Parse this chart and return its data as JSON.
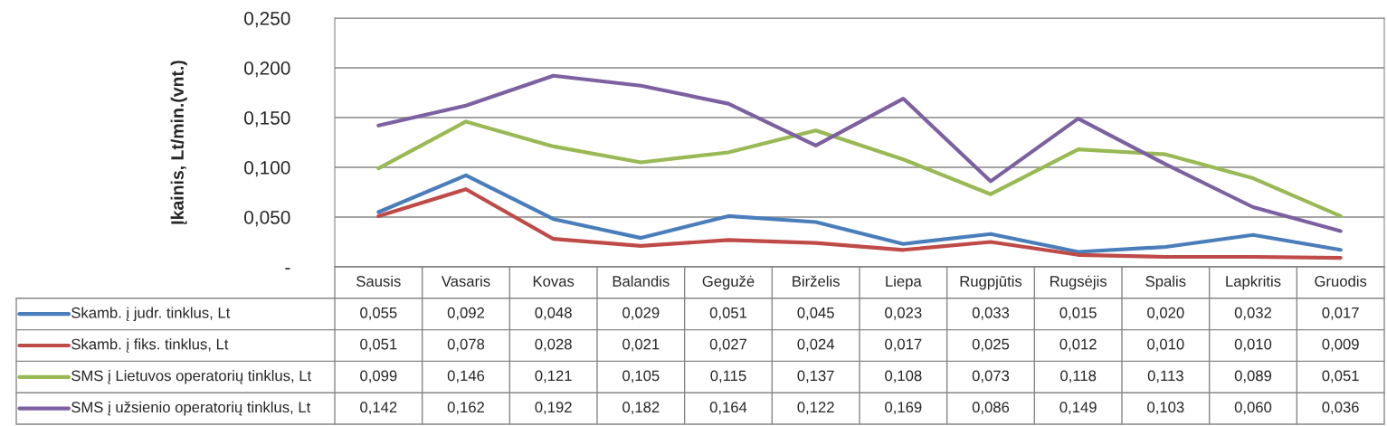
{
  "chart_data": {
    "type": "line",
    "ylabel": "Įkainis, Lt/min.(vnt.)",
    "categories": [
      "Sausis",
      "Vasaris",
      "Kovas",
      "Balandis",
      "Gegužė",
      "Birželis",
      "Liepa",
      "Rugpjūtis",
      "Rugsėjis",
      "Spalis",
      "Lapkritis",
      "Gruodis"
    ],
    "series": [
      {
        "name": "Skamb. į judr. tinklus, Lt",
        "color": "#4a7ebb",
        "values": [
          0.055,
          0.092,
          0.048,
          0.029,
          0.051,
          0.045,
          0.023,
          0.033,
          0.015,
          0.02,
          0.032,
          0.017
        ],
        "value_labels": [
          "0,055",
          "0,092",
          "0,048",
          "0,029",
          "0,051",
          "0,045",
          "0,023",
          "0,033",
          "0,015",
          "0,020",
          "0,032",
          "0,017"
        ]
      },
      {
        "name": "Skamb. į fiks. tinklus, Lt",
        "color": "#be4b48",
        "values": [
          0.051,
          0.078,
          0.028,
          0.021,
          0.027,
          0.024,
          0.017,
          0.025,
          0.012,
          0.01,
          0.01,
          0.009
        ],
        "value_labels": [
          "0,051",
          "0,078",
          "0,028",
          "0,021",
          "0,027",
          "0,024",
          "0,017",
          "0,025",
          "0,012",
          "0,010",
          "0,010",
          "0,009"
        ]
      },
      {
        "name": "SMS į Lietuvos operatorių tinklus, Lt",
        "color": "#98b954",
        "values": [
          0.099,
          0.146,
          0.121,
          0.105,
          0.115,
          0.137,
          0.108,
          0.073,
          0.118,
          0.113,
          0.089,
          0.051
        ],
        "value_labels": [
          "0,099",
          "0,146",
          "0,121",
          "0,105",
          "0,115",
          "0,137",
          "0,108",
          "0,073",
          "0,118",
          "0,113",
          "0,089",
          "0,051"
        ]
      },
      {
        "name": "SMS į užsienio operatorių tinklus, Lt",
        "color": "#7d60a0",
        "values": [
          0.142,
          0.162,
          0.192,
          0.182,
          0.164,
          0.122,
          0.169,
          0.086,
          0.149,
          0.103,
          0.06,
          0.036
        ],
        "value_labels": [
          "0,142",
          "0,162",
          "0,192",
          "0,182",
          "0,164",
          "0,122",
          "0,169",
          "0,086",
          "0,149",
          "0,103",
          "0,060",
          "0,036"
        ]
      }
    ],
    "ylim": [
      0,
      0.25
    ],
    "yticks": [
      {
        "value": 0,
        "label": "-"
      },
      {
        "value": 0.05,
        "label": "0,050"
      },
      {
        "value": 0.1,
        "label": "0,100"
      },
      {
        "value": 0.15,
        "label": "0,150"
      },
      {
        "value": 0.2,
        "label": "0,200"
      },
      {
        "value": 0.25,
        "label": "0,250"
      }
    ],
    "grid": "y",
    "legend": "bottom",
    "tick_labels": "y",
    "marker": "none",
    "line_style": "solid"
  }
}
